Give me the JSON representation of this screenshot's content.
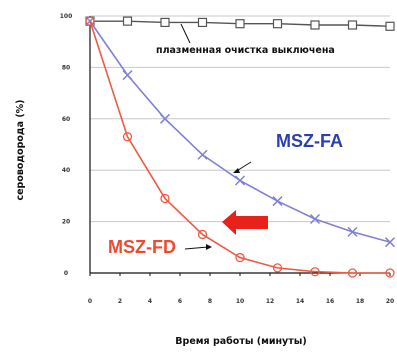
{
  "colors": {
    "grid": "#c8c8c8",
    "axis": "#111111",
    "off_series": "#555555",
    "fa_series": "#8080d8",
    "fd_series": "#ef5a44",
    "arrow": "#e8211b",
    "fa_label": "#2c3fae",
    "fd_label": "#ef4a30"
  },
  "chart_data": {
    "type": "line",
    "xlabel": "Время работы (минуты)",
    "ylabel": "сероводорода (%)",
    "xlim": [
      0,
      20
    ],
    "ylim": [
      0,
      100
    ],
    "x_ticks": [
      0,
      2,
      4,
      6,
      8,
      10,
      12,
      14,
      16,
      18,
      20
    ],
    "y_ticks": [
      0,
      20,
      40,
      60,
      80,
      100
    ],
    "grid": "horizontal",
    "series": [
      {
        "name": "плазменная очистка выключена",
        "marker": "square",
        "x": [
          0,
          2.5,
          5,
          7.5,
          10,
          12.5,
          15,
          17.5,
          20
        ],
        "y": [
          98,
          98,
          97.5,
          97.5,
          97,
          97,
          96.5,
          96.5,
          96
        ]
      },
      {
        "name": "MSZ-FA",
        "marker": "x",
        "x": [
          0,
          2.5,
          5,
          7.5,
          10,
          12.5,
          15,
          17.5,
          20
        ],
        "y": [
          98,
          77,
          60,
          46,
          36,
          28,
          21,
          16,
          12
        ]
      },
      {
        "name": "MSZ-FD",
        "marker": "circle",
        "x": [
          0,
          2.5,
          5,
          7.5,
          10,
          12.5,
          15,
          17.5,
          20
        ],
        "y": [
          98,
          53,
          29,
          15,
          6,
          2,
          0.5,
          0,
          0
        ]
      }
    ],
    "annotations": [
      {
        "text": "плазменная очистка выключена",
        "series": "плазменная очистка выключена"
      },
      {
        "text": "MSZ-FA",
        "series": "MSZ-FA"
      },
      {
        "text": "MSZ-FD",
        "series": "MSZ-FD"
      }
    ]
  }
}
